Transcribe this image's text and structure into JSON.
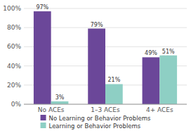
{
  "chart_data": {
    "type": "bar",
    "categories": [
      "No ACEs",
      "1–3 ACEs",
      "4+ ACEs"
    ],
    "series": [
      {
        "name": "No Learning or Behavior Problems",
        "color": "#6b4799",
        "values": [
          97,
          79,
          49
        ],
        "value_labels": [
          "97%",
          "79%",
          "49%"
        ]
      },
      {
        "name": "Learning or Behavior Problems",
        "color": "#8ecfc4",
        "values": [
          3,
          21,
          51
        ],
        "value_labels": [
          "3%",
          "21%",
          "51%"
        ]
      }
    ],
    "ylim": [
      0,
      100
    ],
    "yticks": [
      {
        "value": 0,
        "label": "0%"
      },
      {
        "value": 20,
        "label": "20%"
      },
      {
        "value": 40,
        "label": "40%"
      },
      {
        "value": 60,
        "label": "60%"
      },
      {
        "value": 80,
        "label": "80%"
      },
      {
        "value": 100,
        "label": "100%"
      }
    ],
    "grid": true,
    "data_labels": true,
    "legend": "bottom"
  }
}
